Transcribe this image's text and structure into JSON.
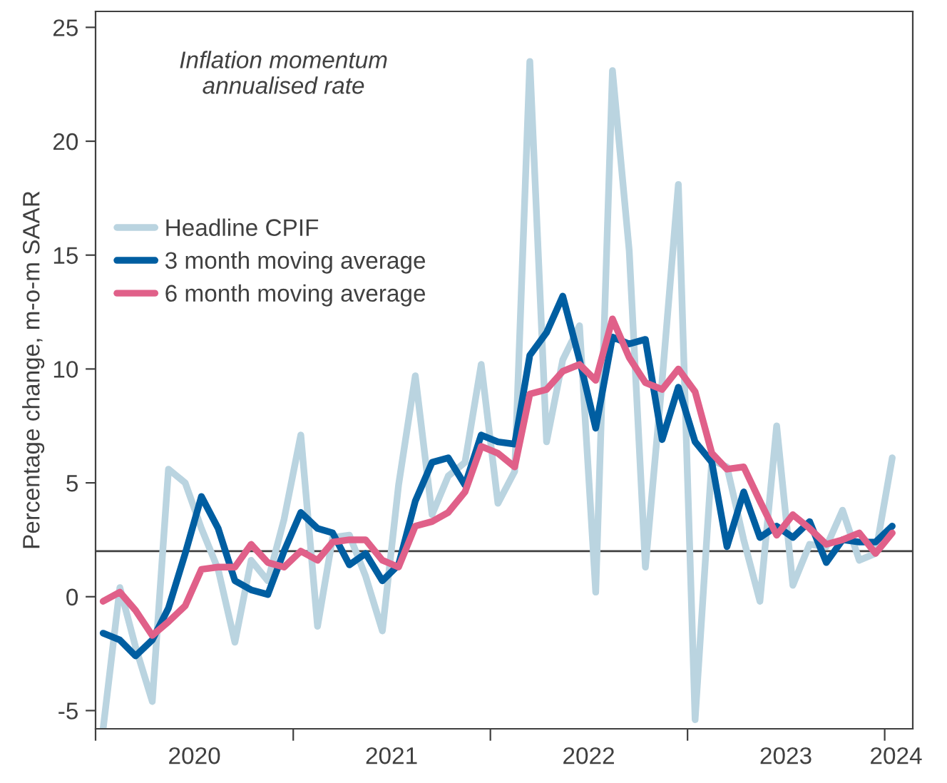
{
  "chart_data": {
    "type": "line",
    "ylabel": "Percentage change, m-o-m SAAR",
    "annotations": [
      "Inflation momentum\nannualised rate"
    ],
    "x": [
      "2020-01-15",
      "2020-02-15",
      "2020-03-15",
      "2020-04-15",
      "2020-05-15",
      "2020-06-15",
      "2020-07-15",
      "2020-08-15",
      "2020-09-15",
      "2020-10-15",
      "2020-11-15",
      "2020-12-15",
      "2021-01-15",
      "2021-02-15",
      "2021-03-15",
      "2021-04-15",
      "2021-05-15",
      "2021-06-15",
      "2021-07-15",
      "2021-08-15",
      "2021-09-15",
      "2021-10-15",
      "2021-11-15",
      "2021-12-15",
      "2022-01-15",
      "2022-02-15",
      "2022-03-15",
      "2022-04-15",
      "2022-05-15",
      "2022-06-15",
      "2022-07-15",
      "2022-08-15",
      "2022-09-15",
      "2022-10-15",
      "2022-11-15",
      "2022-12-15",
      "2023-01-15",
      "2023-02-15",
      "2023-03-15",
      "2023-04-15",
      "2023-05-15",
      "2023-06-15",
      "2023-07-15",
      "2023-08-15",
      "2023-09-15",
      "2023-10-15",
      "2023-11-15",
      "2023-12-15",
      "2024-01-15"
    ],
    "series": [
      {
        "name": "Headline CPIF",
        "color": "#bad4e0",
        "values": [
          -5.8,
          0.4,
          -2.2,
          -4.6,
          5.6,
          5.0,
          3.0,
          1.2,
          -2.0,
          1.6,
          0.7,
          3.4,
          7.1,
          -1.3,
          2.6,
          2.7,
          0.9,
          -1.5,
          4.9,
          9.7,
          3.6,
          5.3,
          5.9,
          10.2,
          4.1,
          5.5,
          23.5,
          6.8,
          10.4,
          11.9,
          0.2,
          23.1,
          15.2,
          1.3,
          9.5,
          18.1,
          -5.4,
          6.0,
          5.7,
          2.5,
          -0.2,
          7.5,
          0.5,
          2.3,
          2.2,
          3.8,
          1.6,
          1.9,
          6.1
        ]
      },
      {
        "name": "3 month moving average",
        "color": "#005ea1",
        "values": [
          -1.6,
          -1.9,
          -2.6,
          -1.9,
          -0.5,
          1.9,
          4.4,
          3.0,
          0.7,
          0.3,
          0.1,
          2.0,
          3.7,
          3.0,
          2.8,
          1.4,
          1.9,
          0.7,
          1.4,
          4.2,
          5.9,
          6.1,
          4.9,
          7.1,
          6.8,
          6.7,
          10.6,
          11.6,
          13.2,
          10.4,
          7.4,
          11.4,
          11.1,
          11.3,
          6.9,
          9.2,
          6.8,
          5.9,
          2.2,
          4.6,
          2.6,
          3.1,
          2.6,
          3.3,
          1.5,
          2.5,
          2.4,
          2.4,
          3.1
        ]
      },
      {
        "name": "6 month moving average",
        "color": "#e06089",
        "values": [
          -0.2,
          0.2,
          -0.6,
          -1.7,
          -1.1,
          -0.4,
          1.2,
          1.3,
          1.3,
          2.3,
          1.5,
          1.3,
          2.0,
          1.6,
          2.4,
          2.5,
          2.5,
          1.6,
          1.3,
          3.1,
          3.3,
          3.7,
          4.6,
          6.6,
          6.3,
          5.7,
          8.9,
          9.1,
          9.9,
          10.2,
          9.5,
          12.2,
          10.5,
          9.4,
          9.1,
          10.0,
          9.0,
          6.3,
          5.6,
          5.7,
          4.2,
          2.7,
          3.6,
          3.0,
          2.3,
          2.5,
          2.8,
          1.9,
          2.8
        ]
      }
    ],
    "ref_lines": [
      {
        "axis": "y",
        "value": 2,
        "color": "#404040"
      }
    ],
    "xlim": [
      "2020-01-01",
      "2024-02-22"
    ],
    "xticks": [
      {
        "value": "2020-01-01",
        "label": null
      },
      {
        "value": "2020-07-02",
        "label": "2020"
      },
      {
        "value": "2021-01-01",
        "label": null
      },
      {
        "value": "2021-07-02",
        "label": "2021"
      },
      {
        "value": "2022-01-01",
        "label": null
      },
      {
        "value": "2022-07-02",
        "label": "2022"
      },
      {
        "value": "2023-01-01",
        "label": null
      },
      {
        "value": "2023-07-02",
        "label": "2023"
      },
      {
        "value": "2024-01-01",
        "label": null
      },
      {
        "value": "2024-01-22",
        "label": "2024"
      }
    ],
    "ylim": [
      -5.8,
      25.7
    ],
    "yticks": [
      -5,
      0,
      5,
      10,
      15,
      20,
      25
    ],
    "grid": false,
    "legend": "left",
    "marker": "none",
    "line_style": "solid"
  }
}
